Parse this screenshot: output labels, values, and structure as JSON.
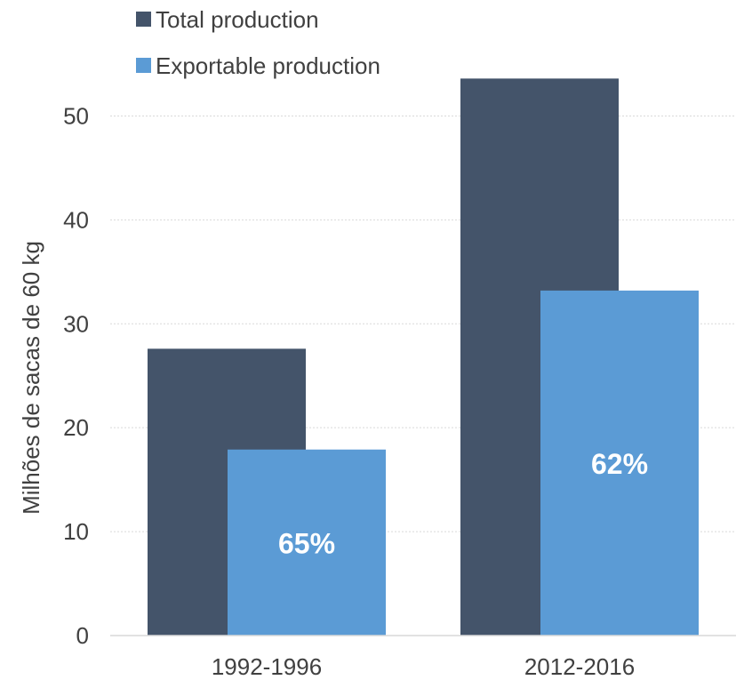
{
  "chart_data": {
    "type": "bar",
    "categories": [
      "1992-1996",
      "2012-2016"
    ],
    "series": [
      {
        "name": "Total production",
        "values": [
          27.6,
          53.6
        ],
        "color": "#44546a"
      },
      {
        "name": "Exportable production",
        "values": [
          17.9,
          33.2
        ],
        "color": "#5b9bd5",
        "data_labels": [
          "65%",
          "62%"
        ]
      }
    ],
    "ylabel": "Milhões de sacas de 60 kg",
    "xlabel": "",
    "ylim": [
      0,
      55
    ],
    "yticks": [
      0,
      10,
      20,
      30,
      40,
      50
    ],
    "grid": true,
    "legend_position": "top-left"
  }
}
